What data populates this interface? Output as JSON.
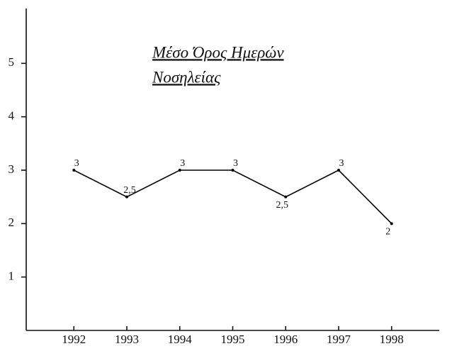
{
  "chart_data": {
    "type": "line",
    "title": [
      "Μέσο Όρος Ημερών",
      "Νοσηλείας"
    ],
    "x": [
      1992,
      1993,
      1994,
      1995,
      1996,
      1997,
      1998
    ],
    "values": [
      3,
      2.5,
      3,
      3,
      2.5,
      3,
      2
    ],
    "value_labels": [
      "3",
      "2,5",
      "3",
      "3",
      "2,5",
      "3",
      "2"
    ],
    "color": "#000000",
    "xlim": [
      1991.1,
      1998.9
    ],
    "xticks": [
      1992,
      1993,
      1994,
      1995,
      1996,
      1997,
      1998
    ],
    "ylim": [
      0,
      6
    ],
    "yticks": [
      1,
      2,
      3,
      4,
      5
    ]
  }
}
